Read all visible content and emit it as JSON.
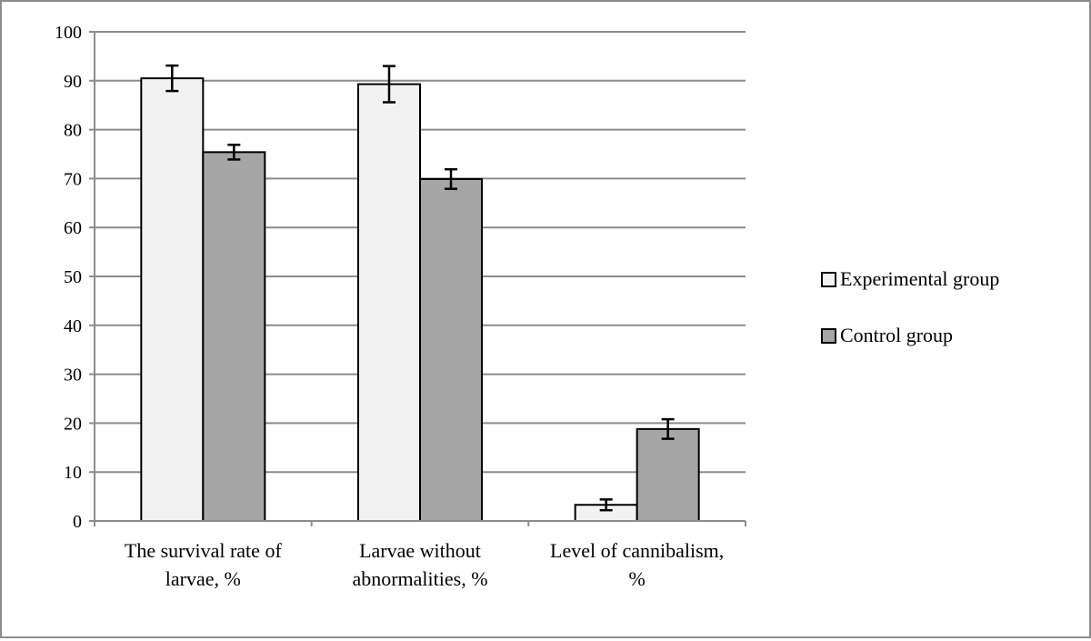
{
  "chart_data": {
    "type": "bar",
    "title": "",
    "xlabel": "",
    "ylabel": "",
    "categories": [
      [
        "The survival rate of",
        "larvae, %"
      ],
      [
        "Larvae without",
        "abnormalities, %"
      ],
      [
        "Level of cannibalism,",
        "%"
      ]
    ],
    "series": [
      {
        "name": "Experimental group",
        "values": [
          90.5,
          89.3,
          3.3
        ],
        "errors": [
          2.6,
          3.7,
          1.1
        ],
        "color": "#f2f2f2"
      },
      {
        "name": "Control group",
        "values": [
          75.4,
          69.9,
          18.8
        ],
        "errors": [
          1.5,
          2.0,
          2.0
        ],
        "color": "#a6a6a6"
      }
    ],
    "ylim": [
      0,
      100
    ],
    "yticks": [
      0,
      10,
      20,
      30,
      40,
      50,
      60,
      70,
      80,
      90,
      100
    ],
    "grid": true,
    "legend_position": "right"
  }
}
